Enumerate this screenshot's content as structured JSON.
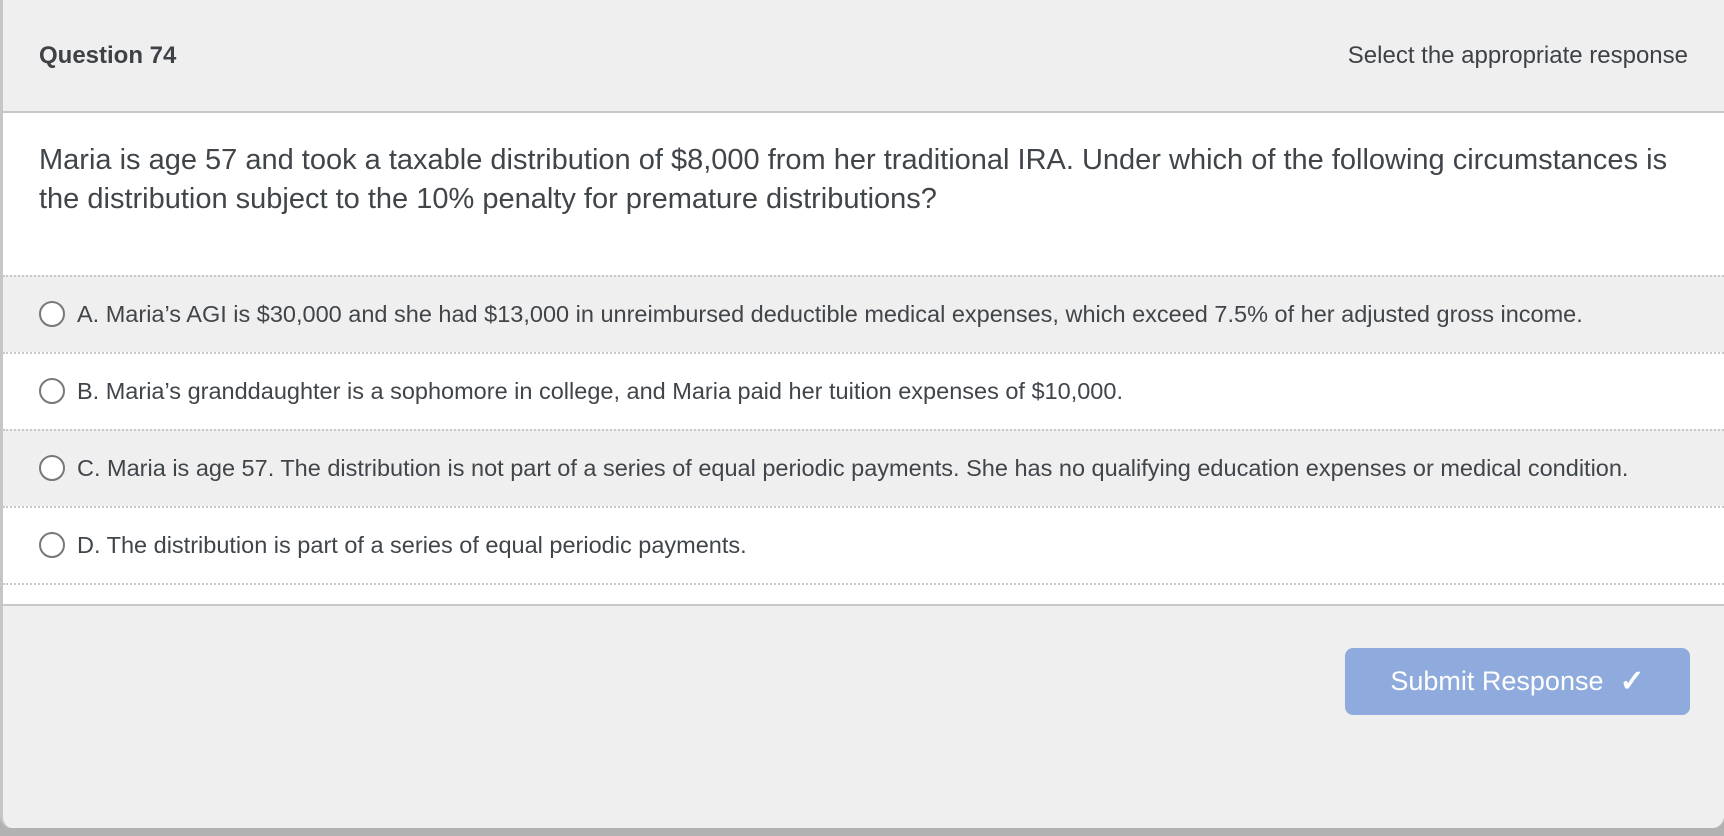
{
  "header": {
    "question_label": "Question 74",
    "instruction": "Select the appropriate response"
  },
  "question": {
    "text": "Maria is age 57 and took a taxable distribution of $8,000 from her traditional IRA. Under which of the following circumstances is the distribution subject to the 10% penalty for premature distributions?"
  },
  "options": [
    {
      "id": "A",
      "selected": false,
      "label": "A. Maria’s AGI is $30,000 and she had $13,000 in unreimbursed deductible medical expenses, which exceed 7.5% of her adjusted gross income."
    },
    {
      "id": "B",
      "selected": false,
      "label": "B. Maria’s granddaughter is a sophomore in college, and Maria paid her tuition expenses of $10,000."
    },
    {
      "id": "C",
      "selected": false,
      "label": "C. Maria is age 57. The distribution is not part of a series of equal periodic payments. She has no qualifying education expenses or medical condition."
    },
    {
      "id": "D",
      "selected": false,
      "label": "D. The distribution is part of a series of equal periodic payments."
    }
  ],
  "footer": {
    "submit_label": "Submit Response",
    "submit_icon": "✓"
  },
  "colors": {
    "accent": "#8faadc",
    "panel_bg": "#efefef",
    "border_solid": "#c8c8cb",
    "border_dotted": "#c8c8c8",
    "text": "#40454a",
    "page_strip": "#b2b2b2"
  }
}
